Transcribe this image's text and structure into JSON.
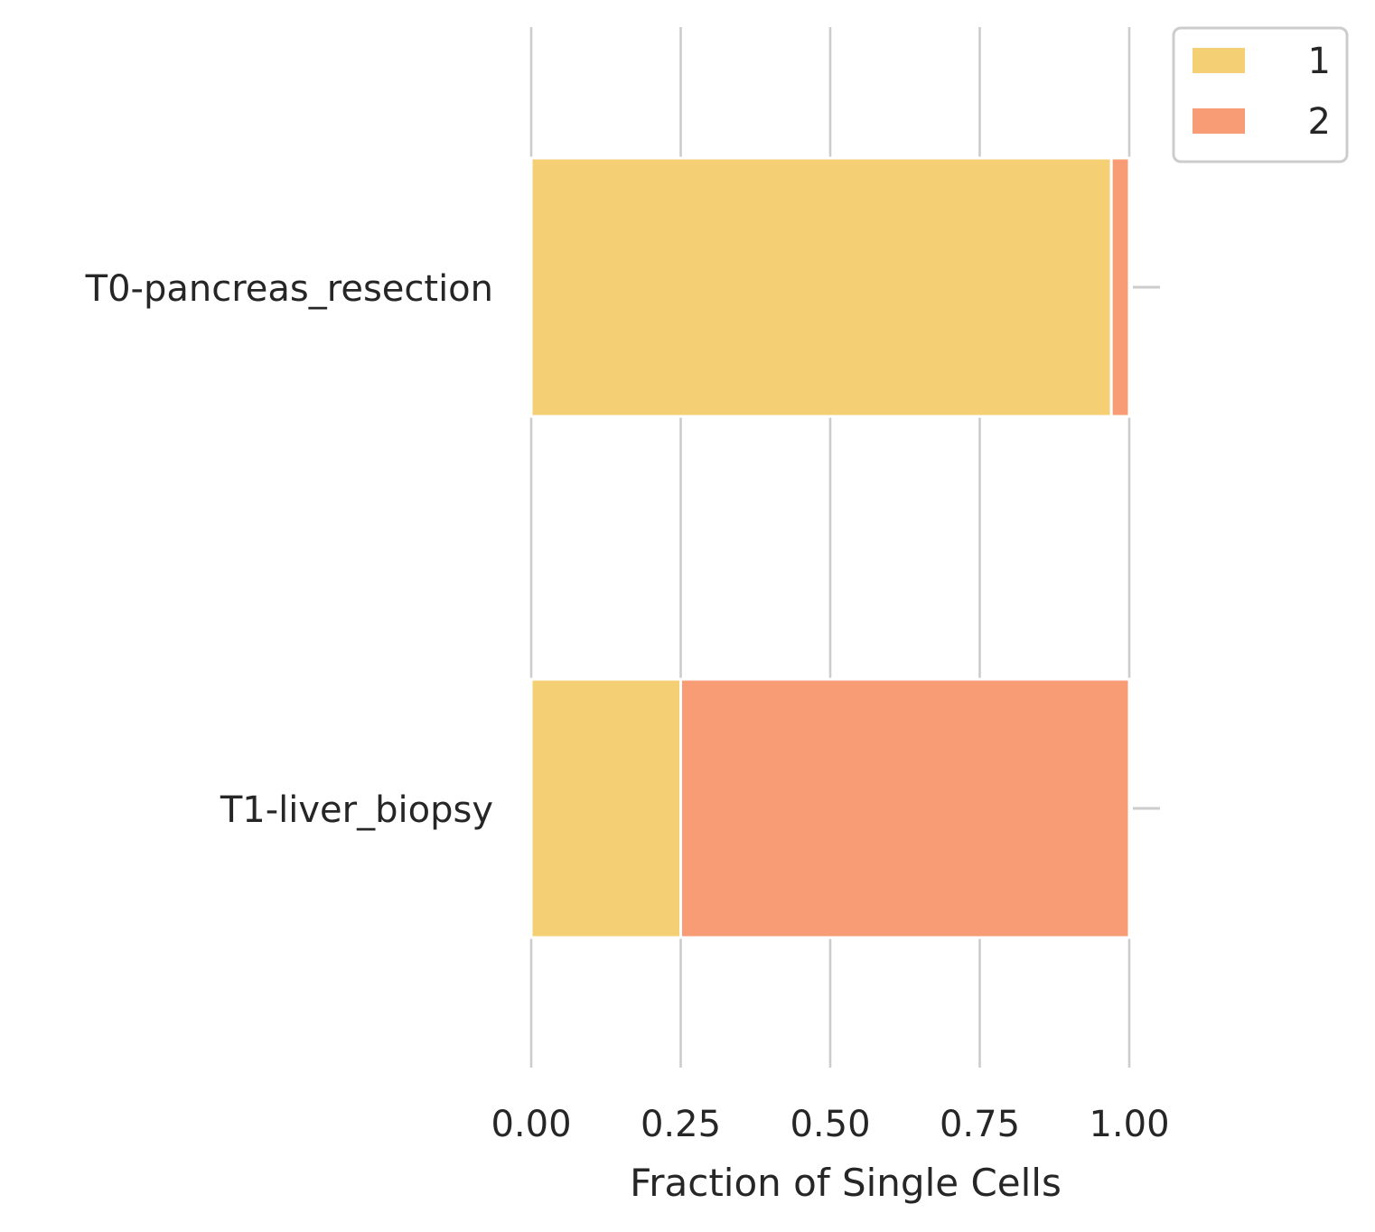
{
  "chart_data": {
    "type": "bar",
    "orientation": "horizontal",
    "stacked": true,
    "categories": [
      "T0-pancreas_resection",
      "T1-liver_biopsy"
    ],
    "series": [
      {
        "name": "1",
        "values": [
          0.97,
          0.25
        ],
        "color": "#F5CF74"
      },
      {
        "name": "2",
        "values": [
          0.03,
          0.75
        ],
        "color": "#F79C75"
      }
    ],
    "xlabel": "Fraction of Single Cells",
    "ylabel": "",
    "title": "",
    "xlim": [
      0,
      1
    ],
    "xticks": [
      "0.00",
      "0.25",
      "0.50",
      "0.75",
      "1.00"
    ],
    "xtick_values": [
      0,
      0.25,
      0.5,
      0.75,
      1.0
    ],
    "grid": "x",
    "legend_position": "top-right",
    "grid_color": "#CCCCCC"
  }
}
